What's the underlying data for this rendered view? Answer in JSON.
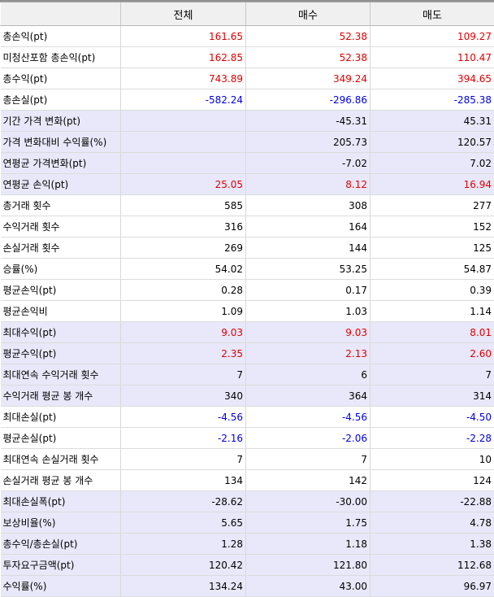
{
  "header": {
    "columns": [
      "",
      "전체",
      "매수",
      "매도"
    ]
  },
  "colors": {
    "positive": "#e00000",
    "negative": "#0000e0",
    "shaded_row": "#e8e8fa"
  },
  "rows": [
    {
      "label": "총손익(pt)",
      "values": [
        "161.65",
        "52.38",
        "109.27"
      ],
      "tone": "red",
      "shaded": false
    },
    {
      "label": "미청산포함 총손익(pt)",
      "values": [
        "162.85",
        "52.38",
        "110.47"
      ],
      "tone": "red",
      "shaded": false
    },
    {
      "label": "총수익(pt)",
      "values": [
        "743.89",
        "349.24",
        "394.65"
      ],
      "tone": "red",
      "shaded": false
    },
    {
      "label": "총손실(pt)",
      "values": [
        "-582.24",
        "-296.86",
        "-285.38"
      ],
      "tone": "blue",
      "shaded": false
    },
    {
      "label": "기간 가격 변화(pt)",
      "values": [
        "",
        "-45.31",
        "45.31"
      ],
      "tone": "black",
      "shaded": true
    },
    {
      "label": "가격 변화대비 수익률(%)",
      "values": [
        "",
        "205.73",
        "120.57"
      ],
      "tone": "black",
      "shaded": true
    },
    {
      "label": "연평균 가격변화(pt)",
      "values": [
        "",
        "-7.02",
        "7.02"
      ],
      "tone": "black",
      "shaded": true
    },
    {
      "label": "연평균 손익(pt)",
      "values": [
        "25.05",
        "8.12",
        "16.94"
      ],
      "tone": "red",
      "shaded": true
    },
    {
      "label": "총거래 횟수",
      "values": [
        "585",
        "308",
        "277"
      ],
      "tone": "black",
      "shaded": false
    },
    {
      "label": "수익거래 횟수",
      "values": [
        "316",
        "164",
        "152"
      ],
      "tone": "black",
      "shaded": false
    },
    {
      "label": "손실거래 횟수",
      "values": [
        "269",
        "144",
        "125"
      ],
      "tone": "black",
      "shaded": false
    },
    {
      "label": "승률(%)",
      "values": [
        "54.02",
        "53.25",
        "54.87"
      ],
      "tone": "black",
      "shaded": false
    },
    {
      "label": "평균손익(pt)",
      "values": [
        "0.28",
        "0.17",
        "0.39"
      ],
      "tone": "black",
      "shaded": false
    },
    {
      "label": "평균손익비",
      "values": [
        "1.09",
        "1.03",
        "1.14"
      ],
      "tone": "black",
      "shaded": false
    },
    {
      "label": "최대수익(pt)",
      "values": [
        "9.03",
        "9.03",
        "8.01"
      ],
      "tone": "red",
      "shaded": true
    },
    {
      "label": "평균수익(pt)",
      "values": [
        "2.35",
        "2.13",
        "2.60"
      ],
      "tone": "red",
      "shaded": true
    },
    {
      "label": "최대연속 수익거래 횟수",
      "values": [
        "7",
        "6",
        "7"
      ],
      "tone": "black",
      "shaded": true
    },
    {
      "label": "수익거래 평균 봉 개수",
      "values": [
        "340",
        "364",
        "314"
      ],
      "tone": "black",
      "shaded": true
    },
    {
      "label": "최대손실(pt)",
      "values": [
        "-4.56",
        "-4.56",
        "-4.50"
      ],
      "tone": "blue",
      "shaded": false
    },
    {
      "label": "평균손실(pt)",
      "values": [
        "-2.16",
        "-2.06",
        "-2.28"
      ],
      "tone": "blue",
      "shaded": false
    },
    {
      "label": "최대연속 손실거래 횟수",
      "values": [
        "7",
        "7",
        "10"
      ],
      "tone": "black",
      "shaded": false
    },
    {
      "label": "손실거래 평균 봉 개수",
      "values": [
        "134",
        "142",
        "124"
      ],
      "tone": "black",
      "shaded": false
    },
    {
      "label": "최대손실폭(pt)",
      "values": [
        "-28.62",
        "-30.00",
        "-22.88"
      ],
      "tone": "black",
      "shaded": true
    },
    {
      "label": "보상비율(%)",
      "values": [
        "5.65",
        "1.75",
        "4.78"
      ],
      "tone": "black",
      "shaded": true
    },
    {
      "label": "총수익/총손실(pt)",
      "values": [
        "1.28",
        "1.18",
        "1.38"
      ],
      "tone": "black",
      "shaded": true
    },
    {
      "label": "투자요구금액(pt)",
      "values": [
        "120.42",
        "121.80",
        "112.68"
      ],
      "tone": "black",
      "shaded": true
    },
    {
      "label": "수익률(%)",
      "values": [
        "134.24",
        "43.00",
        "96.97"
      ],
      "tone": "black",
      "shaded": true
    }
  ]
}
